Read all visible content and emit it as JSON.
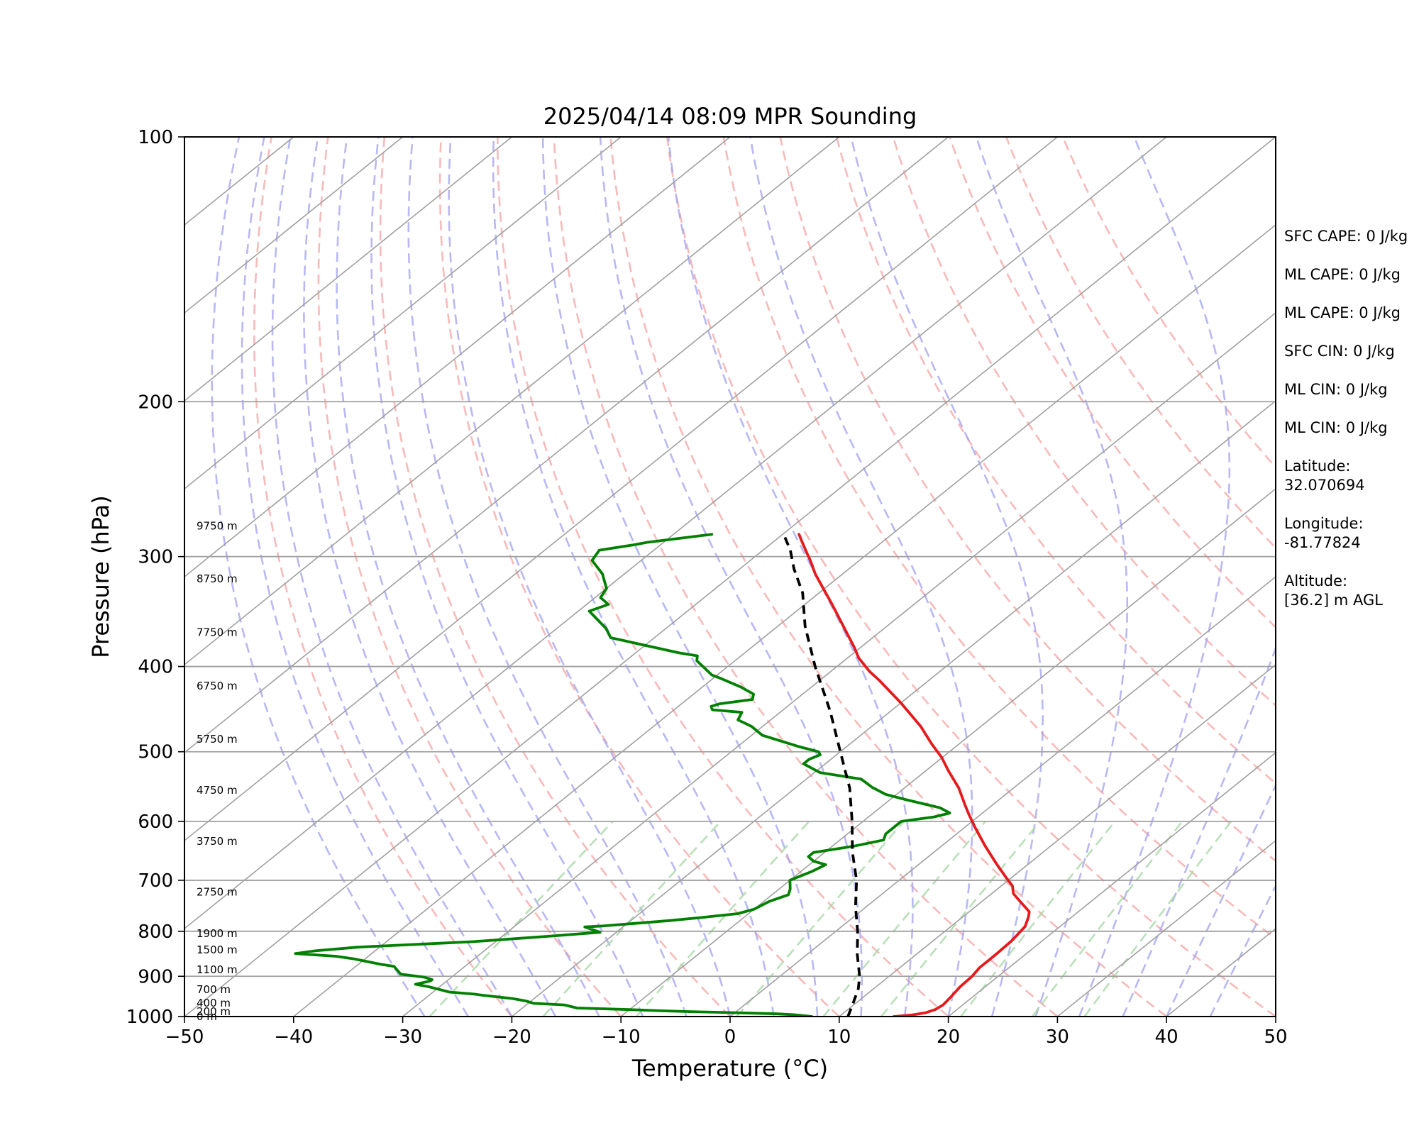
{
  "chart_data": {
    "type": "line",
    "subtype": "skew-t log-p",
    "title": "2025/04/14 08:09 MPR Sounding",
    "xlabel": "Temperature (°C)",
    "ylabel": "Pressure (hPa)",
    "xlim": [
      -50,
      50
    ],
    "ylim": [
      1000,
      100
    ],
    "y_scale": "log",
    "grid": true,
    "x_ticks": [
      "−50",
      "−40",
      "−30",
      "−20",
      "−10",
      "0",
      "10",
      "20",
      "30",
      "40",
      "50"
    ],
    "y_ticks": [
      {
        "p": 100,
        "label": "100"
      },
      {
        "p": 200,
        "label": "200"
      },
      {
        "p": 300,
        "label": "300"
      },
      {
        "p": 400,
        "label": "400"
      },
      {
        "p": 500,
        "label": "500"
      },
      {
        "p": 600,
        "label": "600"
      },
      {
        "p": 700,
        "label": "700"
      },
      {
        "p": 800,
        "label": "800"
      },
      {
        "p": 900,
        "label": "900"
      },
      {
        "p": 1000,
        "label": "1000"
      }
    ],
    "height_labels": [
      {
        "p": 1000,
        "label": "0 m"
      },
      {
        "p": 987,
        "label": "200 m"
      },
      {
        "p": 965,
        "label": "400 m"
      },
      {
        "p": 932,
        "label": "700 m"
      },
      {
        "p": 885,
        "label": "1100 m"
      },
      {
        "p": 840,
        "label": "1500 m"
      },
      {
        "p": 805,
        "label": "1900 m"
      },
      {
        "p": 722,
        "label": "2750 m"
      },
      {
        "p": 632,
        "label": "3750 m"
      },
      {
        "p": 553,
        "label": "4750 m"
      },
      {
        "p": 484,
        "label": "5750 m"
      },
      {
        "p": 421,
        "label": "6750 m"
      },
      {
        "p": 366,
        "label": "7750 m"
      },
      {
        "p": 318,
        "label": "8750 m"
      },
      {
        "p": 277,
        "label": "9750 m"
      }
    ],
    "series": [
      {
        "role": "temperature",
        "color": "#e41a1c",
        "points": [
          [
            15.0,
            1000
          ],
          [
            16.5,
            996
          ],
          [
            17.5,
            990
          ],
          [
            18.0,
            982
          ],
          [
            18.2,
            970
          ],
          [
            18.0,
            950
          ],
          [
            17.7,
            925
          ],
          [
            17.6,
            900
          ],
          [
            17.3,
            880
          ],
          [
            17.3,
            850
          ],
          [
            17.2,
            820
          ],
          [
            16.8,
            790
          ],
          [
            16.0,
            770
          ],
          [
            15.5,
            760
          ],
          [
            13.5,
            740
          ],
          [
            12.0,
            725
          ],
          [
            11.0,
            710
          ],
          [
            9.5,
            695
          ],
          [
            7.0,
            670
          ],
          [
            4.0,
            640
          ],
          [
            1.0,
            610
          ],
          [
            -1.0,
            590
          ],
          [
            -2.5,
            575
          ],
          [
            -5.0,
            550
          ],
          [
            -8.0,
            525
          ],
          [
            -10.0,
            508
          ],
          [
            -12.5,
            490
          ],
          [
            -15.5,
            468
          ],
          [
            -20.0,
            440
          ],
          [
            -24.5,
            415
          ],
          [
            -26.5,
            405
          ],
          [
            -29.0,
            391
          ],
          [
            -30.5,
            381
          ],
          [
            -37.5,
            340
          ],
          [
            -42.5,
            314
          ],
          [
            -44.5,
            303
          ],
          [
            -45.5,
            298
          ],
          [
            -47.5,
            288
          ],
          [
            -48.5,
            283
          ]
        ]
      },
      {
        "role": "dewpoint",
        "color": "#008000",
        "points": [
          [
            7.5,
            1000
          ],
          [
            5.5,
            995
          ],
          [
            4.0,
            993
          ],
          [
            0.0,
            990
          ],
          [
            -4.5,
            987
          ],
          [
            -7.0,
            985
          ],
          [
            -10.0,
            982
          ],
          [
            -15.0,
            978
          ],
          [
            -16.5,
            970
          ],
          [
            -19.5,
            966
          ],
          [
            -20.5,
            960
          ],
          [
            -22.0,
            954
          ],
          [
            -25.0,
            946
          ],
          [
            -26.0,
            943
          ],
          [
            -28.5,
            938
          ],
          [
            -31.0,
            925
          ],
          [
            -32.5,
            919
          ],
          [
            -31.5,
            911
          ],
          [
            -31.5,
            908
          ],
          [
            -32.5,
            902
          ],
          [
            -35.0,
            895
          ],
          [
            -36.5,
            877
          ],
          [
            -38.0,
            872
          ],
          [
            -41.0,
            860
          ],
          [
            -43.0,
            854
          ],
          [
            -47.0,
            848
          ],
          [
            -45.5,
            842
          ],
          [
            -42.0,
            834
          ],
          [
            -32.0,
            822
          ],
          [
            -25.5,
            810
          ],
          [
            -21.5,
            802
          ],
          [
            -23.5,
            791
          ],
          [
            -22.0,
            789
          ],
          [
            -16.5,
            778
          ],
          [
            -14.0,
            772
          ],
          [
            -11.0,
            764
          ],
          [
            -10.0,
            755
          ],
          [
            -9.5,
            740
          ],
          [
            -8.5,
            727
          ],
          [
            -9.0,
            716
          ],
          [
            -10.0,
            700
          ],
          [
            -9.0,
            684
          ],
          [
            -8.5,
            672
          ],
          [
            -10.0,
            666
          ],
          [
            -11.0,
            658
          ],
          [
            -11.0,
            651
          ],
          [
            -8.0,
            640
          ],
          [
            -6.0,
            630
          ],
          [
            -6.5,
            620
          ],
          [
            -6.5,
            600
          ],
          [
            -4.0,
            593
          ],
          [
            -3.0,
            587
          ],
          [
            -4.5,
            579
          ],
          [
            -8.5,
            567
          ],
          [
            -11.0,
            559
          ],
          [
            -13.0,
            549
          ],
          [
            -15.0,
            537
          ],
          [
            -19.5,
            528
          ],
          [
            -22.0,
            516
          ],
          [
            -22.0,
            510
          ],
          [
            -21.5,
            504
          ],
          [
            -22.0,
            500
          ],
          [
            -24.5,
            493
          ],
          [
            -29.0,
            479
          ],
          [
            -31.0,
            468
          ],
          [
            -33.0,
            460
          ],
          [
            -33.5,
            451
          ],
          [
            -36.5,
            448
          ],
          [
            -37.0,
            444
          ],
          [
            -36.5,
            441
          ],
          [
            -34.0,
            436
          ],
          [
            -34.5,
            430
          ],
          [
            -36.5,
            422
          ],
          [
            -39.5,
            412
          ],
          [
            -40.5,
            409
          ],
          [
            -43.5,
            394
          ],
          [
            -44.0,
            389
          ],
          [
            -46.0,
            386
          ],
          [
            -54.0,
            371
          ],
          [
            -55.5,
            362
          ],
          [
            -59.0,
            346
          ],
          [
            -58.0,
            340
          ],
          [
            -59.5,
            334
          ],
          [
            -60.0,
            326
          ],
          [
            -61.5,
            317
          ],
          [
            -62.0,
            314
          ],
          [
            -64.5,
            303
          ],
          [
            -65.0,
            295
          ],
          [
            -62.5,
            291
          ],
          [
            -61.5,
            289
          ],
          [
            -56.5,
            283
          ]
        ]
      },
      {
        "role": "parcel",
        "color": "#000000",
        "dashed": true,
        "points": [
          [
            10.8,
            1000
          ],
          [
            9.9,
            970
          ],
          [
            8.6,
            930
          ],
          [
            7.3,
            900
          ],
          [
            4.6,
            850
          ],
          [
            2.0,
            800
          ],
          [
            -1.0,
            750
          ],
          [
            -3.9,
            700
          ],
          [
            -7.5,
            650
          ],
          [
            -11.0,
            600
          ],
          [
            -15.0,
            550
          ],
          [
            -20.0,
            500
          ],
          [
            -25.5,
            450
          ],
          [
            -32.0,
            400
          ],
          [
            -37.5,
            360
          ],
          [
            -41.5,
            330
          ],
          [
            -45.0,
            310
          ],
          [
            -47.5,
            295
          ],
          [
            -49.5,
            285
          ]
        ]
      }
    ],
    "dry_adiabats_theta_c": [
      -20,
      -10,
      0,
      10,
      20,
      30,
      40,
      50,
      60,
      70,
      80,
      90,
      100,
      110,
      120
    ],
    "moist_adiabat_start_c": [
      -28,
      -24,
      -20,
      -16,
      -12,
      -8,
      -4,
      0,
      4,
      8,
      12,
      16,
      20,
      24,
      28,
      32,
      36,
      40,
      44
    ],
    "mixing_ratio_lines_gkg": [
      0.4,
      1,
      2,
      4,
      7,
      10,
      16,
      24,
      32
    ],
    "colors": {
      "temperature": "#e41a1c",
      "dewpoint": "#008000",
      "parcel": "#000000",
      "isotherm": "#a0a0a0",
      "isobar": "#a0a0a0",
      "dry_adiabat": "#f4a3a3",
      "moist_adiabat": "#a0a0f0",
      "mixing_ratio": "#a8d8a8"
    }
  },
  "info": [
    {
      "id": "sfc-cape",
      "text": "SFC CAPE: 0 J/kg"
    },
    {
      "id": "ml-cape-1",
      "text": "ML CAPE: 0 J/kg"
    },
    {
      "id": "ml-cape-2",
      "text": "ML CAPE: 0 J/kg"
    },
    {
      "id": "sfc-cin",
      "text": "SFC CIN: 0 J/kg"
    },
    {
      "id": "ml-cin-1",
      "text": "ML CIN: 0 J/kg"
    },
    {
      "id": "ml-cin-2",
      "text": "ML CIN: 0 J/kg"
    },
    {
      "id": "latitude",
      "lines": [
        "Latitude:",
        "32.070694"
      ]
    },
    {
      "id": "longitude",
      "lines": [
        "Longitude:",
        "-81.77824"
      ]
    },
    {
      "id": "altitude",
      "lines": [
        "Altitude:",
        "[36.2] m AGL"
      ]
    }
  ]
}
